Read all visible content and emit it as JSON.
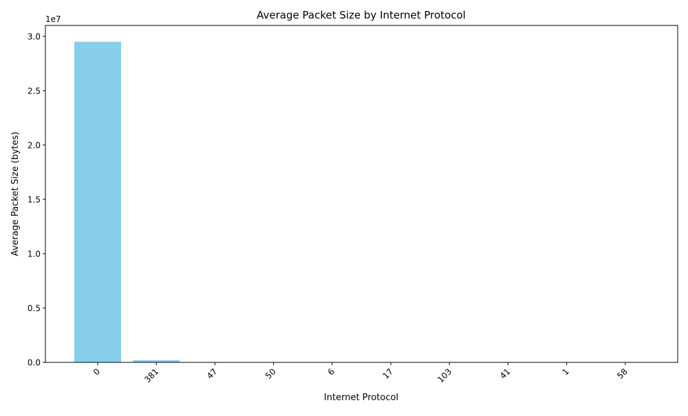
{
  "chart_data": {
    "type": "bar",
    "title": "Average Packet Size by Internet Protocol",
    "xlabel": "Internet Protocol",
    "ylabel": "Average Packet Size (bytes)",
    "offset_label": "1e7",
    "categories": [
      "0",
      "381",
      "47",
      "50",
      "6",
      "17",
      "103",
      "41",
      "1",
      "58"
    ],
    "values": [
      29500000,
      200000,
      2000,
      1500,
      1200,
      900,
      800,
      600,
      400,
      300
    ],
    "ylim": [
      0,
      31000000
    ],
    "yticks": [
      {
        "value": 0,
        "label": "0.0"
      },
      {
        "value": 5000000,
        "label": "0.5"
      },
      {
        "value": 10000000,
        "label": "1.0"
      },
      {
        "value": 15000000,
        "label": "1.5"
      },
      {
        "value": 20000000,
        "label": "2.0"
      },
      {
        "value": 25000000,
        "label": "2.5"
      },
      {
        "value": 30000000,
        "label": "3.0"
      }
    ],
    "bar_color": "#87CEEB",
    "grid": false,
    "xtick_rotation_deg": 45
  }
}
